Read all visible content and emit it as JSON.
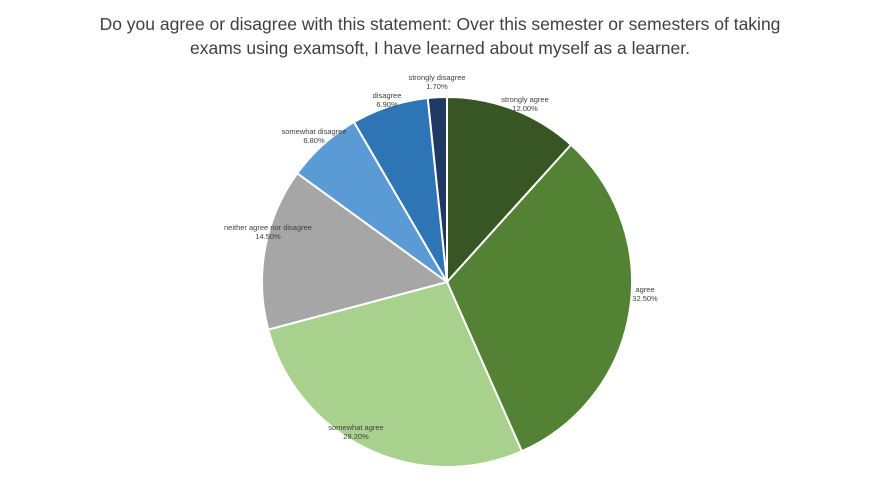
{
  "title_lines": [
    "Do you agree or disagree with this statement: Over this semester or semesters of taking",
    "exams using examsoft, I have learned about myself as a learner."
  ],
  "chart_data": {
    "type": "pie",
    "title": "Do you agree or disagree with this statement: Over this semester or semesters of taking exams using examsoft, I have learned about myself as a learner.",
    "start": "12 o'clock, clockwise",
    "slices": [
      {
        "label": "strongly agree",
        "value": 12.0,
        "display": "12.00%",
        "color": "#375623"
      },
      {
        "label": "agree",
        "value": 32.5,
        "display": "32.50%",
        "color": "#548235"
      },
      {
        "label": "somewhat agree",
        "value": 28.2,
        "display": "28.20%",
        "color": "#a9d18e"
      },
      {
        "label": "neither agree nor disagree",
        "value": 14.5,
        "display": "14.50%",
        "color": "#a6a6a6"
      },
      {
        "label": "somewhat disagree",
        "value": 6.8,
        "display": "6.80%",
        "color": "#5b9bd5"
      },
      {
        "label": "disagree",
        "value": 6.9,
        "display": "6.90%",
        "color": "#2e75b6"
      },
      {
        "label": "strongly disagree",
        "value": 1.7,
        "display": "1.70%",
        "color": "#203864"
      }
    ]
  }
}
